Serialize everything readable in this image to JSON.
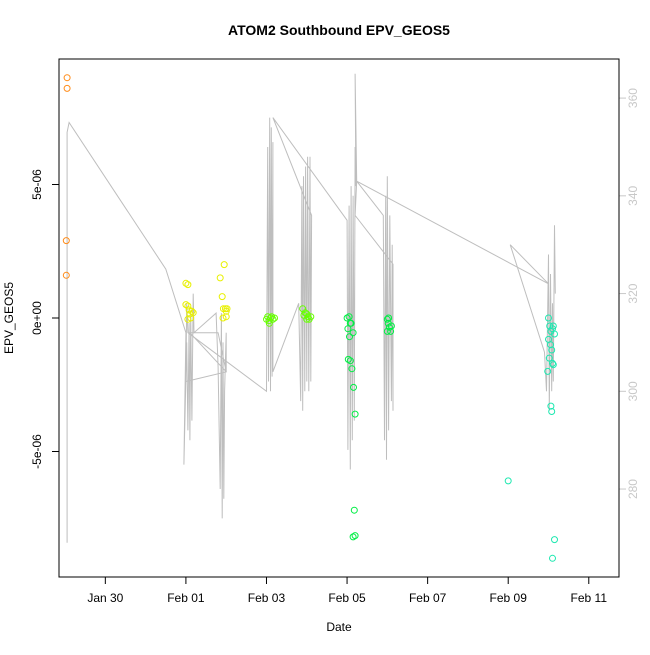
{
  "chart_data": {
    "type": "scatter",
    "title": "ATOM2 Southbound EPV_GEOS5",
    "xlabel": "Date",
    "ylabel": "EPV_GEOS5",
    "x_ticks": [
      "Jan 30",
      "Feb 01",
      "Feb 03",
      "Feb 05",
      "Feb 07",
      "Feb 09",
      "Feb 11"
    ],
    "x_tick_days": [
      0,
      2,
      4,
      6,
      8,
      10,
      12
    ],
    "xlim_days": [
      -1.15,
      12.75
    ],
    "y_ticks": [
      "-5e-06",
      "0e+00",
      "5e-06"
    ],
    "y_tick_values": [
      -5e-06,
      0,
      5e-06
    ],
    "ylim": [
      -9.7e-06,
      9.7e-06
    ],
    "right_axis": {
      "ticks": [
        "280",
        "300",
        "320",
        "340",
        "360"
      ],
      "tick_values": [
        280,
        300,
        320,
        340,
        360
      ],
      "ylim": [
        262,
        368
      ],
      "color": "#c8c8c8"
    },
    "grid": false,
    "series": [
      {
        "color": "#ff8c1a",
        "points": [
          [
            -0.95,
            9e-06
          ],
          [
            -0.95,
            8.6e-06
          ],
          [
            -0.97,
            2.9e-06
          ],
          [
            -0.97,
            1.6e-06
          ]
        ]
      },
      {
        "color": "#e8f000",
        "points": [
          [
            2.0,
            1.3e-06
          ],
          [
            2.05,
            1.25e-06
          ],
          [
            2.0,
            5e-07
          ],
          [
            2.05,
            4.5e-07
          ],
          [
            2.08,
            3e-07
          ],
          [
            2.1,
            1.5e-07
          ],
          [
            2.15,
            2.5e-07
          ],
          [
            2.05,
            -5e-08
          ],
          [
            2.12,
            0.0
          ],
          [
            2.18,
            2e-07
          ],
          [
            2.85,
            1.5e-06
          ],
          [
            2.9,
            8e-07
          ],
          [
            2.93,
            3.5e-07
          ],
          [
            2.95,
            2e-06
          ],
          [
            2.98,
            3.5e-07
          ],
          [
            3.0,
            2.5e-07
          ],
          [
            3.02,
            3.5e-07
          ],
          [
            2.92,
            0.0
          ],
          [
            3.0,
            5e-08
          ]
        ]
      },
      {
        "color": "#66ff00",
        "points": [
          [
            4.0,
            -5e-08
          ],
          [
            4.03,
            5e-08
          ],
          [
            4.06,
            -1e-07
          ],
          [
            4.1,
            0.0
          ],
          [
            4.13,
            5e-08
          ],
          [
            4.16,
            -5e-08
          ],
          [
            4.2,
            0.0
          ],
          [
            4.07,
            -2e-07
          ],
          [
            4.9,
            3.5e-07
          ],
          [
            4.93,
            1e-07
          ],
          [
            4.96,
            2e-07
          ],
          [
            5.0,
            1.5e-07
          ],
          [
            5.03,
            5e-08
          ],
          [
            5.06,
            -5e-08
          ],
          [
            5.1,
            5e-08
          ],
          [
            5.0,
            -5e-08
          ]
        ]
      },
      {
        "color": "#00ee44",
        "points": [
          [
            6.0,
            0.0
          ],
          [
            6.05,
            5e-08
          ],
          [
            6.08,
            -2e-07
          ],
          [
            6.02,
            -4e-07
          ],
          [
            6.06,
            -7e-07
          ],
          [
            6.1,
            -2e-07
          ],
          [
            6.15,
            -5.5e-07
          ],
          [
            6.03,
            -1.55e-06
          ],
          [
            6.08,
            -1.6e-06
          ],
          [
            6.12,
            -1.9e-06
          ],
          [
            6.16,
            -2.6e-06
          ],
          [
            6.2,
            -3.6e-06
          ],
          [
            6.18,
            -7.2e-06
          ],
          [
            6.15,
            -8.2e-06
          ],
          [
            6.2,
            -8.15e-06
          ],
          [
            7.0,
            -5e-08
          ],
          [
            7.02,
            -2e-07
          ],
          [
            7.05,
            -3.5e-07
          ],
          [
            7.08,
            -5e-07
          ],
          [
            7.0,
            -5e-07
          ],
          [
            7.1,
            -3e-07
          ],
          [
            7.03,
            0.0
          ]
        ]
      },
      {
        "color": "#1de8b0",
        "points": [
          [
            11.0,
            0.0
          ],
          [
            11.03,
            -3e-07
          ],
          [
            11.06,
            -5e-07
          ],
          [
            11.1,
            -4e-07
          ],
          [
            11.12,
            -3e-07
          ],
          [
            11.15,
            -6e-07
          ],
          [
            11.0,
            -8e-07
          ],
          [
            11.05,
            -1e-06
          ],
          [
            11.08,
            -1.2e-06
          ],
          [
            11.02,
            -1.5e-06
          ],
          [
            11.1,
            -1.7e-06
          ],
          [
            11.12,
            -1.75e-06
          ],
          [
            10.98,
            -2e-06
          ],
          [
            11.06,
            -3.3e-06
          ],
          [
            11.08,
            -3.5e-06
          ],
          [
            11.15,
            -8.3e-06
          ],
          [
            11.1,
            -9e-06
          ],
          [
            10.0,
            -6.1e-06
          ]
        ]
      }
    ],
    "line_series": {
      "color": "#bebebe",
      "axis": "right",
      "points": [
        [
          -0.95,
          269
        ],
        [
          -0.95,
          353
        ],
        [
          -0.9,
          355
        ],
        [
          1.5,
          325
        ],
        [
          2.0,
          312
        ],
        [
          1.95,
          285
        ],
        [
          2.02,
          310
        ],
        [
          2.05,
          292
        ],
        [
          2.08,
          314
        ],
        [
          2.1,
          290
        ],
        [
          2.12,
          316
        ],
        [
          2.15,
          294
        ],
        [
          2.18,
          320
        ],
        [
          2.2,
          312
        ],
        [
          2.75,
          316
        ],
        [
          2.8,
          305
        ],
        [
          2.85,
          280
        ],
        [
          2.88,
          316
        ],
        [
          2.9,
          274
        ],
        [
          2.92,
          310
        ],
        [
          2.94,
          278
        ],
        [
          2.96,
          300
        ],
        [
          3.0,
          312
        ],
        [
          3.0,
          304
        ],
        [
          2.8,
          312
        ],
        [
          2.1,
          312
        ],
        [
          3.0,
          304
        ],
        [
          2.0,
          302
        ],
        [
          2.02,
          318
        ],
        [
          2.05,
          312
        ],
        [
          4.0,
          300
        ],
        [
          4.03,
          350
        ],
        [
          4.05,
          302
        ],
        [
          4.08,
          356
        ],
        [
          4.1,
          300
        ],
        [
          4.12,
          354
        ],
        [
          4.14,
          303
        ],
        [
          4.16,
          351
        ],
        [
          4.16,
          304
        ],
        [
          4.8,
          318
        ],
        [
          4.85,
          298
        ],
        [
          4.88,
          342
        ],
        [
          4.9,
          296
        ],
        [
          4.92,
          344
        ],
        [
          4.95,
          300
        ],
        [
          4.97,
          346
        ],
        [
          5.0,
          302
        ],
        [
          5.02,
          348
        ],
        [
          5.05,
          300
        ],
        [
          5.08,
          348
        ],
        [
          5.1,
          302
        ],
        [
          5.12,
          336
        ],
        [
          4.16,
          356
        ],
        [
          6.0,
          335
        ],
        [
          6.02,
          288
        ],
        [
          6.05,
          338
        ],
        [
          6.08,
          284
        ],
        [
          6.1,
          342
        ],
        [
          6.13,
          290
        ],
        [
          6.15,
          340
        ],
        [
          6.18,
          294
        ],
        [
          6.2,
          350
        ],
        [
          6.22,
          342
        ],
        [
          6.2,
          365
        ],
        [
          6.24,
          343
        ],
        [
          6.24,
          343
        ],
        [
          6.9,
          336
        ],
        [
          6.93,
          290
        ],
        [
          6.96,
          340
        ],
        [
          6.98,
          286
        ],
        [
          7.0,
          344
        ],
        [
          7.03,
          292
        ],
        [
          7.06,
          336
        ],
        [
          7.1,
          298
        ],
        [
          7.12,
          330
        ],
        [
          7.14,
          296
        ],
        [
          7.14,
          326
        ],
        [
          6.2,
          336
        ],
        [
          6.24,
          343
        ],
        [
          11.0,
          322
        ],
        [
          10.05,
          330
        ],
        [
          10.9,
          308
        ],
        [
          10.95,
          300
        ],
        [
          11.0,
          328
        ],
        [
          11.02,
          296
        ],
        [
          11.05,
          324
        ],
        [
          11.08,
          300
        ],
        [
          11.1,
          318
        ],
        [
          11.12,
          302
        ],
        [
          11.15,
          334
        ],
        [
          11.17,
          320
        ]
      ]
    }
  }
}
